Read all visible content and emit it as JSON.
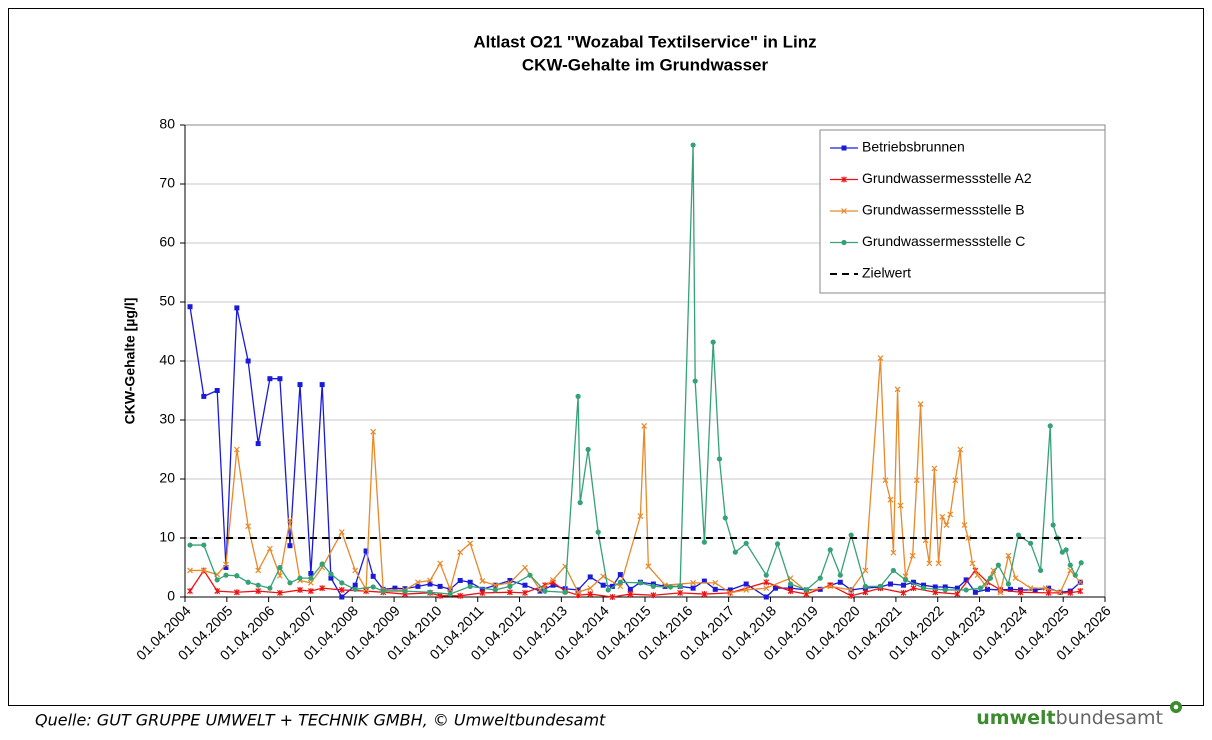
{
  "chart_data": {
    "type": "line",
    "title": "Altlast O21 \"Wozabal Textilservice\" in Linz",
    "subtitle": "CKW-Gehalte im Grundwasser",
    "y_label": "CKW-Gehalte [µg/l]",
    "xlim": [
      2004.25,
      2026.25
    ],
    "xticks": [
      {
        "value": 2004.25,
        "label": "01.04.2004"
      },
      {
        "value": 2005.25,
        "label": "01.04.2005"
      },
      {
        "value": 2006.25,
        "label": "01.04.2006"
      },
      {
        "value": 2007.25,
        "label": "01.04.2007"
      },
      {
        "value": 2008.25,
        "label": "01.04.2008"
      },
      {
        "value": 2009.25,
        "label": "01.04.2009"
      },
      {
        "value": 2010.25,
        "label": "01.04.2010"
      },
      {
        "value": 2011.25,
        "label": "01.04.2011"
      },
      {
        "value": 2012.25,
        "label": "01.04.2012"
      },
      {
        "value": 2013.25,
        "label": "01.04.2013"
      },
      {
        "value": 2014.25,
        "label": "01.04.2014"
      },
      {
        "value": 2015.25,
        "label": "01.04.2015"
      },
      {
        "value": 2016.25,
        "label": "01.04.2016"
      },
      {
        "value": 2017.25,
        "label": "01.04.2017"
      },
      {
        "value": 2018.25,
        "label": "01.04.2018"
      },
      {
        "value": 2019.25,
        "label": "01.04.2019"
      },
      {
        "value": 2020.25,
        "label": "01.04.2020"
      },
      {
        "value": 2021.25,
        "label": "01.04.2021"
      },
      {
        "value": 2022.25,
        "label": "01.04.2022"
      },
      {
        "value": 2023.25,
        "label": "01.04.2023"
      },
      {
        "value": 2024.25,
        "label": "01.04.2024"
      },
      {
        "value": 2025.25,
        "label": "01.04.2025"
      },
      {
        "value": 2026.25,
        "label": "01.04.2026"
      }
    ],
    "ylim": [
      0,
      80
    ],
    "yticks": [
      0,
      10,
      20,
      30,
      40,
      50,
      60,
      70,
      80
    ],
    "grid": true,
    "legend": "upper right",
    "series": [
      {
        "name": "Betriebsbrunnen",
        "color": "#1a1adb",
        "marker": "square",
        "x": [
          2004.37,
          2004.7,
          2005.02,
          2005.23,
          2005.49,
          2005.76,
          2006.0,
          2006.28,
          2006.52,
          2006.76,
          2007.0,
          2007.26,
          2007.53,
          2007.74,
          2008.0,
          2008.32,
          2008.58,
          2008.75,
          2008.99,
          2009.27,
          2009.51,
          2009.82,
          2010.11,
          2010.35,
          2010.59,
          2010.83,
          2011.07,
          2011.36,
          2011.67,
          2012.02,
          2012.38,
          2012.74,
          2013.05,
          2013.34,
          2013.65,
          2013.94,
          2014.25,
          2014.47,
          2014.66,
          2014.9,
          2015.14,
          2015.45,
          2015.73,
          2016.09,
          2016.4,
          2016.67,
          2016.93,
          2017.29,
          2017.67,
          2018.15,
          2018.37,
          2018.73,
          2019.11,
          2019.44,
          2019.68,
          2019.92,
          2020.18,
          2020.52,
          2020.88,
          2021.12,
          2021.43,
          2021.67,
          2021.91,
          2022.19,
          2022.43,
          2022.72,
          2022.93,
          2023.15,
          2023.44,
          2023.75,
          2023.99,
          2024.23,
          2024.58,
          2024.9,
          2025.18,
          2025.42,
          2025.66
        ],
        "values": [
          49.2,
          34,
          35,
          5,
          49,
          40,
          26,
          37,
          37,
          8.7,
          36,
          4,
          36,
          3.2,
          0,
          2,
          7.8,
          3.5,
          1.3,
          1.5,
          1.4,
          1.8,
          2.2,
          1.8,
          1.3,
          2.8,
          2.5,
          1.3,
          2,
          2.8,
          2,
          1,
          2,
          1.4,
          1.2,
          3.4,
          2,
          1.8,
          3.8,
          1.3,
          2.5,
          2.2,
          1.8,
          1.8,
          1.5,
          2.7,
          1.3,
          1.2,
          2.2,
          0,
          1.5,
          1.5,
          1.2,
          1.3,
          2,
          2.5,
          1.2,
          1.5,
          1.7,
          2.2,
          2,
          2.5,
          2,
          1.7,
          1.7,
          1.5,
          2.9,
          0.8,
          1.3,
          1.2,
          1.3,
          1.2,
          1.2,
          1.5,
          0.8,
          1,
          2.5
        ]
      },
      {
        "name": "Grundwassermessstelle A2",
        "color": "#ee1111",
        "marker": "star",
        "x": [
          2004.37,
          2004.7,
          2005.02,
          2005.49,
          2006.0,
          2006.52,
          2007.0,
          2007.26,
          2007.53,
          2008.0,
          2008.58,
          2008.99,
          2009.51,
          2010.11,
          2010.35,
          2010.83,
          2011.36,
          2012.02,
          2012.38,
          2012.86,
          2013.05,
          2013.34,
          2013.65,
          2013.94,
          2014.47,
          2014.9,
          2015.45,
          2016.09,
          2016.67,
          2017.29,
          2018.15,
          2018.73,
          2019.11,
          2019.68,
          2020.18,
          2020.52,
          2020.88,
          2021.43,
          2021.67,
          2022.19,
          2022.72,
          2023.15,
          2023.44,
          2023.75,
          2024.23,
          2024.9,
          2025.42,
          2025.66
        ],
        "values": [
          1,
          4.5,
          1,
          0.8,
          1,
          0.7,
          1.2,
          1,
          1.5,
          1.2,
          1,
          0.8,
          0.5,
          0.7,
          0.2,
          0.2,
          0.7,
          0.8,
          0.7,
          2,
          2.5,
          1,
          0.3,
          0.5,
          0,
          0.5,
          0.3,
          0.7,
          0.5,
          0.7,
          2.5,
          1,
          0.5,
          2,
          0.2,
          0.8,
          1.5,
          0.7,
          1.5,
          0.8,
          0.5,
          4.5,
          2.5,
          1.2,
          0.8,
          0.7,
          0.7,
          1
        ]
      },
      {
        "name": "Grundwassermessstelle B",
        "color": "#e8892a",
        "marker": "cross",
        "x": [
          2004.37,
          2004.7,
          2005.02,
          2005.23,
          2005.49,
          2005.76,
          2006.0,
          2006.28,
          2006.52,
          2006.76,
          2007.0,
          2007.26,
          2007.53,
          2008.0,
          2008.32,
          2008.58,
          2008.75,
          2008.99,
          2009.51,
          2009.82,
          2010.11,
          2010.35,
          2010.59,
          2010.83,
          2011.07,
          2011.36,
          2011.67,
          2012.02,
          2012.38,
          2012.74,
          2013.05,
          2013.34,
          2013.65,
          2013.94,
          2014.25,
          2014.66,
          2015.14,
          2015.23,
          2015.33,
          2015.73,
          2016.4,
          2016.93,
          2017.29,
          2017.67,
          2018.15,
          2018.73,
          2019.11,
          2019.68,
          2020.18,
          2020.52,
          2020.88,
          2021.0,
          2021.12,
          2021.19,
          2021.29,
          2021.36,
          2021.48,
          2021.65,
          2021.75,
          2021.84,
          2021.96,
          2022.05,
          2022.17,
          2022.27,
          2022.36,
          2022.46,
          2022.55,
          2022.67,
          2022.79,
          2022.89,
          2022.98,
          2023.08,
          2023.2,
          2023.39,
          2023.58,
          2023.75,
          2023.94,
          2024.11,
          2024.47,
          2024.83,
          2025.18,
          2025.42,
          2025.66
        ],
        "values": [
          4.5,
          4.5,
          3.8,
          5.5,
          25,
          12,
          4.5,
          8.2,
          3.6,
          13,
          2.8,
          2.4,
          5,
          11,
          4.5,
          1.3,
          28,
          1.2,
          1.2,
          2.5,
          2.8,
          5.7,
          1.3,
          7.6,
          9.1,
          2.7,
          2,
          2.4,
          5,
          1.2,
          2.9,
          5.2,
          0.8,
          1.5,
          3.5,
          1.8,
          13.7,
          29,
          5.2,
          2,
          2.4,
          2.4,
          0.7,
          1.2,
          1.5,
          3.2,
          1,
          1.8,
          1.2,
          4.5,
          40.5,
          19.8,
          16.5,
          7.5,
          35.2,
          15.5,
          3.5,
          7,
          19.8,
          32.7,
          9.6,
          5.7,
          21.8,
          5.7,
          13.6,
          12.2,
          14,
          19.8,
          25,
          12.2,
          10,
          5.7,
          3.7,
          2,
          4.5,
          0.8,
          7,
          3.2,
          1.5,
          1.5,
          0.8,
          4.5,
          2.5
        ]
      },
      {
        "name": "Grundwassermessstelle C",
        "color": "#35a276",
        "marker": "circle",
        "x": [
          2004.37,
          2004.7,
          2005.02,
          2005.23,
          2005.49,
          2005.76,
          2006.0,
          2006.28,
          2006.52,
          2006.76,
          2007.0,
          2007.26,
          2007.53,
          2007.74,
          2008.0,
          2008.32,
          2008.75,
          2008.99,
          2009.51,
          2010.11,
          2010.59,
          2011.07,
          2011.67,
          2012.02,
          2012.5,
          2012.86,
          2013.34,
          2013.65,
          2013.7,
          2013.89,
          2014.13,
          2014.37,
          2014.66,
          2015.14,
          2015.45,
          2015.86,
          2016.09,
          2016.4,
          2016.45,
          2016.67,
          2016.88,
          2017.03,
          2017.17,
          2017.41,
          2017.67,
          2018.15,
          2018.42,
          2018.73,
          2019.11,
          2019.44,
          2019.68,
          2019.92,
          2020.18,
          2020.52,
          2020.88,
          2021.19,
          2021.48,
          2021.91,
          2022.43,
          2022.93,
          2023.27,
          2023.51,
          2023.7,
          2023.94,
          2024.18,
          2024.47,
          2024.71,
          2024.94,
          2025.01,
          2025.11,
          2025.23,
          2025.32,
          2025.42,
          2025.54,
          2025.68
        ],
        "values": [
          8.8,
          8.8,
          2.9,
          3.7,
          3.6,
          2.5,
          2,
          1.5,
          5,
          2.4,
          3.2,
          3.2,
          5.6,
          3.9,
          2.4,
          1.3,
          1.7,
          1,
          1,
          0.8,
          0.5,
          1.8,
          1.2,
          1.8,
          3.7,
          1,
          0.8,
          34,
          16,
          25,
          11,
          1.2,
          2.5,
          2.4,
          1.8,
          1.7,
          1.8,
          76.6,
          36.6,
          9.3,
          43.2,
          23.4,
          13.4,
          7.6,
          9.1,
          3.7,
          9,
          2.2,
          1.2,
          3.2,
          8,
          3.7,
          10.5,
          1.8,
          1.8,
          4.5,
          2.9,
          1.5,
          1.2,
          1.2,
          1.5,
          3.2,
          5.4,
          2.2,
          10.5,
          9.1,
          4.5,
          29,
          12.2,
          10,
          7.6,
          8,
          5.4,
          3.7,
          5.8
        ]
      },
      {
        "name": "Zielwert",
        "color": "#000000",
        "marker": "none",
        "dashed": true,
        "x": [
          2004.37,
          2025.68
        ],
        "values": [
          10,
          10
        ]
      }
    ]
  },
  "footer": {
    "source": "Quelle: GUT GRUPPE UMWELT + TECHNIK GMBH, © Umweltbundesamt",
    "logo_bold": "umwelt",
    "logo_rest": "bundesamt"
  }
}
